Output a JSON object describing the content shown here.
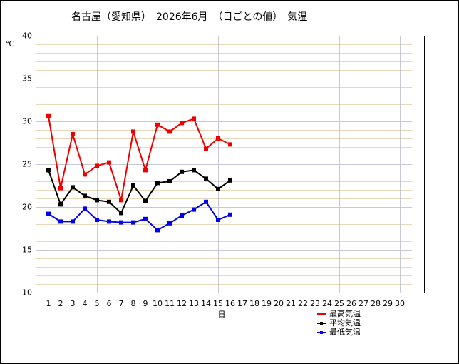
{
  "chart_data": {
    "type": "line",
    "title": "名古屋（愛知県）　2026年6月　（日ごとの値）　気温",
    "y_unit": "℃",
    "xlabel": "日",
    "categories": [
      "1",
      "2",
      "3",
      "4",
      "5",
      "6",
      "7",
      "8",
      "9",
      "10",
      "11",
      "12",
      "13",
      "14",
      "15",
      "16",
      "17",
      "18",
      "19",
      "20",
      "21",
      "22",
      "23",
      "24",
      "25",
      "26",
      "27",
      "28",
      "29",
      "30"
    ],
    "series": [
      {
        "name": "最高気温",
        "color": "#ee0000",
        "values": [
          30.6,
          22.2,
          28.5,
          23.8,
          24.8,
          25.2,
          20.8,
          28.8,
          24.3,
          29.6,
          28.8,
          29.8,
          30.3,
          26.8,
          28.0,
          27.3,
          null,
          null,
          null,
          null,
          null,
          null,
          null,
          null,
          null,
          null,
          null,
          null,
          null,
          null
        ]
      },
      {
        "name": "平均気温",
        "color": "#000000",
        "values": [
          24.3,
          20.3,
          22.3,
          21.3,
          20.8,
          20.6,
          19.3,
          22.5,
          20.7,
          22.8,
          23.0,
          24.1,
          24.3,
          23.3,
          22.1,
          23.1,
          null,
          null,
          null,
          null,
          null,
          null,
          null,
          null,
          null,
          null,
          null,
          null,
          null,
          null
        ]
      },
      {
        "name": "最低気温",
        "color": "#0000ee",
        "values": [
          19.2,
          18.3,
          18.3,
          19.8,
          18.5,
          18.3,
          18.2,
          18.2,
          18.6,
          17.3,
          18.1,
          19.0,
          19.7,
          20.6,
          18.5,
          19.1,
          null,
          null,
          null,
          null,
          null,
          null,
          null,
          null,
          null,
          null,
          null,
          null,
          null,
          null
        ]
      }
    ],
    "ylim": [
      10,
      40
    ],
    "yticks": [
      10,
      15,
      20,
      25,
      30,
      35,
      40
    ],
    "yminorticks": [
      11,
      12,
      13,
      14,
      16,
      17,
      18,
      19,
      21,
      22,
      23,
      24,
      26,
      27,
      28,
      29,
      31,
      32,
      33,
      34,
      36,
      37,
      38,
      39
    ],
    "grid": true
  }
}
